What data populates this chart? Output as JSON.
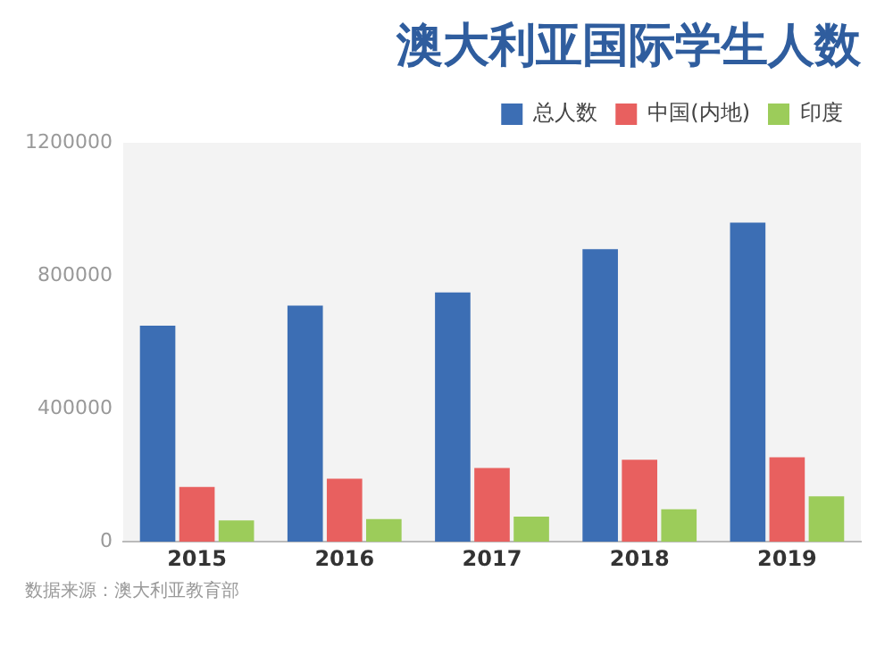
{
  "chart_data": {
    "type": "bar",
    "title": "澳大利亚国际学生人数",
    "categories": [
      "2015",
      "2016",
      "2017",
      "2018",
      "2019"
    ],
    "series": [
      {
        "name": "总人数",
        "color": "#3c6eb4",
        "values": [
          650000,
          710000,
          750000,
          880000,
          960000
        ]
      },
      {
        "name": "中国(内地)",
        "color": "#e8605f",
        "values": [
          165000,
          190000,
          222000,
          247000,
          254000
        ]
      },
      {
        "name": "印度",
        "color": "#9ccc5a",
        "values": [
          64000,
          68000,
          76000,
          98000,
          137000
        ]
      }
    ],
    "ylim": [
      0,
      1200000
    ],
    "yticks": [
      0,
      400000,
      800000,
      1200000
    ],
    "grid": false,
    "legend": "top right",
    "annotations": [
      "数据来源：澳大利亚教育部"
    ]
  }
}
